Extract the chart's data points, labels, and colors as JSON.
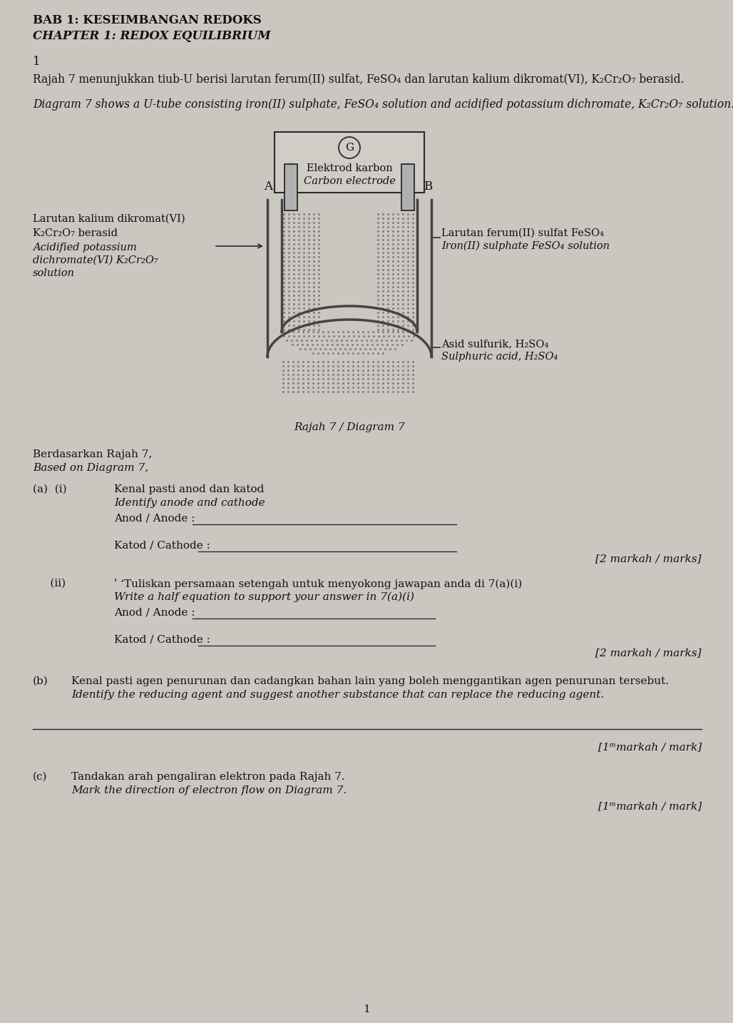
{
  "bg_color": "#cac6c0",
  "title_line1": "BAB 1: KESEIMBANGAN REDOKS",
  "title_line2": "CHAPTER 1: REDOX EQUILIBRIUM",
  "question_number": "1",
  "para1_malay": "Rajah 7 menunjukkan tiub-U berisi larutan ferum(II) sulfat, FeSO₄ dan larutan kalium dikromat(VI), K₂Cr₂O₇ berasid.",
  "para1_english": "Diagram 7 shows a U-tube consisting iron(II) sulphate, FeSO₄ solution and acidified potassium dichromate, K₂Cr₂O₇ solution.",
  "diagram_caption": "Rajah 7 / Diagram 7",
  "label_electrode_malay": "Elektrod karbon",
  "label_electrode_english": "Carbon electrode",
  "label_left_l1": "Larutan kalium dikromat(VI)",
  "label_left_l2": "K₂Cr₂O₇ berasid",
  "label_left_l3": "Acidified potassium",
  "label_left_l4": "dichromate(VI) K₂Cr₂O₇",
  "label_left_l5": "solution",
  "label_right_l1": "Larutan ferum(II) sulfat FeSO₄",
  "label_right_l2": "Iron(II) sulphate FeSO₄ solution",
  "label_acid_l1": "Asid sulfurik, H₂SO₄",
  "label_acid_l2": "Sulphuric acid, H₂SO₄",
  "label_A": "A",
  "label_B": "B",
  "label_G": "G",
  "section_based": "Berdasarkan Rajah 7,",
  "section_based_en": "Based on Diagram 7,",
  "qa_label": "(a)  (i)",
  "qa_i_malay": "Kenal pasti anod dan katod",
  "qa_i_english": "Identify anode and cathode",
  "qa_anode_label": "Anod / Anode :",
  "qa_cathode_label": "Katod / Cathode :",
  "marks_2a": "[2 markah / marks]",
  "qa_ii_label": "(ii)",
  "qa_ii_malay": "ʹ ʻTuliskan persamaan setengah untuk menyokong jawapan anda di 7(a)(i)",
  "qa_ii_english": "Write a half equation to support your answer in 7(a)(i)",
  "marks_2b": "[2 markah / marks]",
  "qb_label": "(b)",
  "qb_malay": "Kenal pasti agen penurunan dan cadangkan bahan lain yang boleh menggantikan agen penurunan tersebut.",
  "qb_english": "Identify the reducing agent and suggest another substance that can replace the reducing agent.",
  "marks_1b": "[1ᵐmarkah / mark]",
  "qc_label": "(c)",
  "qc_malay": "Tandakan arah pengaliran elektron pada Rajah 7.",
  "qc_english": "Mark the direction of electron flow on Diagram 7.",
  "marks_1c": "[1ᵐmarkah / mark]",
  "page_num": "1"
}
